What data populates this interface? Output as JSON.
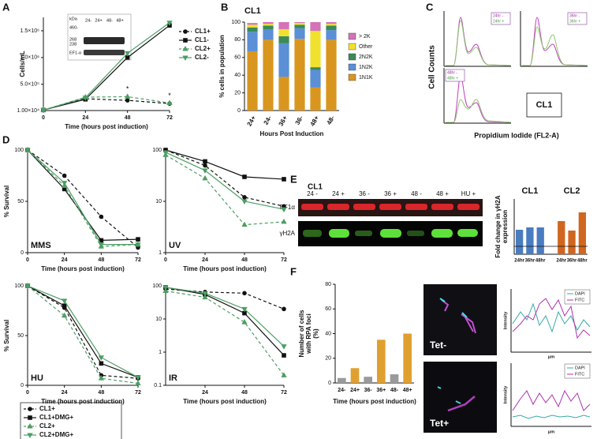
{
  "panels": {
    "a": "A",
    "b": "B",
    "c": "C",
    "d": "D",
    "e": "E",
    "f": "F"
  },
  "inset_a": {
    "unit": "kDa",
    "markers": [
      "460-",
      "268",
      "238"
    ],
    "lanes": [
      "24-",
      "24+",
      "48-",
      "48+"
    ],
    "loading": "EF1-α"
  },
  "panel_c": {
    "y_label": "Cell Counts",
    "x_label": "Propidium Iodide (FL2-A)",
    "cell_line": "CL1",
    "legends": [
      [
        "24hr -",
        "24hr +"
      ],
      [
        "36hr -",
        "36hr +"
      ],
      [
        "48hr -",
        "48hr +"
      ]
    ]
  },
  "blot_e": {
    "cell_line": "CL1",
    "lanes": [
      "24 -",
      "24 +",
      "36 -",
      "36 +",
      "48 -",
      "48 +",
      "HU +"
    ],
    "rows": [
      "EF1α",
      "γH2A"
    ]
  },
  "panel_f": {
    "images": [
      "Tet-",
      "Tet+"
    ],
    "profiles": [
      {
        "legend": [
          "DAPI",
          "FITC"
        ],
        "y_label": "Intensity",
        "x_label": "μm"
      },
      {
        "legend": [
          "DAPI",
          "FITC"
        ],
        "y_label": "Intensity",
        "x_label": "μm"
      }
    ]
  },
  "chart_data": [
    {
      "type": "line",
      "x": [
        0,
        24,
        48,
        72
      ],
      "xlim": [
        0,
        72
      ],
      "xticks": [
        0,
        24,
        48,
        72
      ],
      "ylim": [
        10000,
        1750000
      ],
      "yticks": [
        {
          "value": 10000,
          "label": "1.00×10⁴"
        },
        {
          "value": 500000,
          "label": "5.0×10⁵"
        },
        {
          "value": 1000000,
          "label": "1.0×10⁶"
        },
        {
          "value": 1500000,
          "label": "1.5×10⁶"
        }
      ],
      "x_label": "Time (hours post induction)",
      "y_label": "Cells/mL",
      "legend": "right",
      "series": [
        {
          "name": "CL1+",
          "color": "#111111",
          "dash": true,
          "marker": "circle",
          "values": [
            20000,
            230000,
            200000,
            140000
          ]
        },
        {
          "name": "CL1-",
          "color": "#111111",
          "dash": false,
          "marker": "square",
          "values": [
            20000,
            220000,
            1000000,
            1600000
          ]
        },
        {
          "name": "CL2+",
          "color": "#4d9e63",
          "dash": true,
          "marker": "triangle",
          "values": [
            20000,
            260000,
            270000,
            150000
          ],
          "significance": [
            null,
            null,
            "*",
            "*"
          ]
        },
        {
          "name": "CL2-",
          "color": "#4d9e63",
          "dash": false,
          "marker": "triangle-down",
          "values": [
            20000,
            250000,
            1080000,
            1650000
          ]
        }
      ]
    },
    {
      "type": "stacked_bar",
      "title": "CL1",
      "categories": [
        "24+",
        "24-",
        "36+",
        "36-",
        "48+",
        "48-"
      ],
      "ylim": [
        0,
        100
      ],
      "yticks": [
        0,
        20,
        40,
        60,
        80,
        100
      ],
      "x_label": "Hours Post Induction",
      "y_label": "% cells in population",
      "legend": "right",
      "series": [
        {
          "name": "1N1K",
          "color": "#d9961f",
          "values": [
            67,
            80,
            38,
            81,
            26,
            80
          ]
        },
        {
          "name": "1N2K",
          "color": "#5b8fd6",
          "values": [
            22,
            12,
            38,
            12,
            20,
            11
          ]
        },
        {
          "name": "2N2K",
          "color": "#3b8a5a",
          "values": [
            5,
            4,
            8,
            4,
            3,
            5
          ]
        },
        {
          "name": "Other",
          "color": "#f0e12e",
          "values": [
            3,
            2,
            8,
            2,
            41,
            2
          ]
        },
        {
          "name": "> 2K",
          "color": "#d473b8",
          "values": [
            2,
            2,
            8,
            1,
            10,
            2
          ]
        }
      ]
    },
    {
      "type": "line",
      "annotation": "MMS",
      "x": [
        0,
        24,
        48,
        72
      ],
      "xlim": [
        0,
        72
      ],
      "xticks": [
        0,
        24,
        48,
        72
      ],
      "ylim": [
        0,
        100
      ],
      "yticks": [
        0,
        50,
        100
      ],
      "x_label": "Time (hours post induction)",
      "y_label": "% Survival",
      "legend": "bottom-left",
      "series": [
        {
          "name": "CL1+",
          "color": "#111111",
          "dash": true,
          "marker": "circle",
          "values": [
            100,
            75,
            35,
            5
          ]
        },
        {
          "name": "CL1+DMG+",
          "color": "#111111",
          "dash": false,
          "marker": "square",
          "values": [
            100,
            62,
            12,
            13
          ]
        },
        {
          "name": "CL2+",
          "color": "#4d9e63",
          "dash": true,
          "marker": "triangle",
          "values": [
            100,
            65,
            6,
            8
          ]
        },
        {
          "name": "CL2+DMG+",
          "color": "#4d9e63",
          "dash": false,
          "marker": "triangle-down",
          "values": [
            100,
            68,
            8,
            8
          ]
        }
      ]
    },
    {
      "type": "line",
      "annotation": "UV",
      "log_y": true,
      "x": [
        0,
        24,
        48,
        72
      ],
      "xlim": [
        0,
        72
      ],
      "xticks": [
        0,
        24,
        48,
        72
      ],
      "ylim": [
        1,
        100
      ],
      "yticks": [
        1,
        10,
        100
      ],
      "x_label": "Time (hours post induction)",
      "series": [
        {
          "color": "#111111",
          "dash": true,
          "marker": "circle",
          "values": [
            100,
            50,
            12,
            8
          ]
        },
        {
          "color": "#111111",
          "dash": false,
          "marker": "square",
          "values": [
            100,
            60,
            30,
            27
          ]
        },
        {
          "color": "#4d9e63",
          "dash": true,
          "marker": "triangle",
          "values": [
            80,
            28,
            3.5,
            4
          ]
        },
        {
          "color": "#4d9e63",
          "dash": false,
          "marker": "triangle-down",
          "values": [
            90,
            40,
            10,
            7
          ]
        }
      ]
    },
    {
      "type": "line",
      "annotation": "HU",
      "x": [
        0,
        24,
        48,
        72
      ],
      "xlim": [
        0,
        72
      ],
      "xticks": [
        0,
        24,
        48,
        72
      ],
      "ylim": [
        0,
        100
      ],
      "yticks": [
        0,
        50,
        100
      ],
      "x_label": "Time (hours post induction)",
      "y_label": "% Survival",
      "series": [
        {
          "color": "#111111",
          "dash": true,
          "marker": "circle",
          "values": [
            100,
            78,
            10,
            7
          ]
        },
        {
          "color": "#111111",
          "dash": false,
          "marker": "square",
          "values": [
            100,
            80,
            22,
            8
          ]
        },
        {
          "color": "#4d9e63",
          "dash": true,
          "marker": "triangle",
          "values": [
            100,
            70,
            7,
            2
          ]
        },
        {
          "color": "#4d9e63",
          "dash": false,
          "marker": "triangle-down",
          "values": [
            100,
            85,
            28,
            8
          ]
        }
      ]
    },
    {
      "type": "line",
      "annotation": "IR",
      "log_y": true,
      "x": [
        0,
        24,
        48,
        72
      ],
      "xlim": [
        0,
        72
      ],
      "xticks": [
        24,
        48,
        72
      ],
      "ylim": [
        0.1,
        100
      ],
      "yticks": [
        0.1,
        1,
        10,
        100
      ],
      "x_label": "Time (hours post induction)",
      "series": [
        {
          "color": "#111111",
          "dash": true,
          "marker": "circle",
          "values": [
            80,
            65,
            60,
            20
          ]
        },
        {
          "color": "#111111",
          "dash": false,
          "marker": "square",
          "values": [
            90,
            55,
            15,
            0.8
          ]
        },
        {
          "color": "#4d9e63",
          "dash": true,
          "marker": "triangle",
          "values": [
            70,
            45,
            8,
            0.2
          ]
        },
        {
          "color": "#4d9e63",
          "dash": false,
          "marker": "triangle-down",
          "values": [
            90,
            60,
            20,
            1.5
          ]
        }
      ]
    },
    {
      "type": "grouped_bar",
      "y_label": [
        "Fold change in γH2A",
        "expression"
      ],
      "ylim": [
        0,
        7
      ],
      "refline": 1,
      "series": [
        {
          "name": "CL1",
          "color": "#4a7cc0",
          "categories": [
            "24hr",
            "36hr",
            "48hr"
          ],
          "values": [
            3.1,
            3.4,
            3.4
          ]
        },
        {
          "name": "CL2",
          "color": "#d0661f",
          "categories": [
            "24hr",
            "36hr",
            "48hr"
          ],
          "values": [
            4.2,
            3.0,
            5.3
          ]
        }
      ]
    },
    {
      "type": "bar",
      "categories": [
        "24-",
        "24+",
        "36-",
        "36+",
        "48-",
        "48+"
      ],
      "values": [
        4,
        12,
        5,
        35,
        7,
        40
      ],
      "colors": [
        "#9a9a9a",
        "#e0a030",
        "#9a9a9a",
        "#e0a030",
        "#9a9a9a",
        "#e0a030"
      ],
      "ylim": [
        0,
        80
      ],
      "yticks": [
        0,
        20,
        40,
        60,
        80
      ],
      "x_label": "Time (hours post induction)",
      "y_label": [
        "Number of cells",
        "with RPA foci",
        "(%)"
      ]
    }
  ]
}
